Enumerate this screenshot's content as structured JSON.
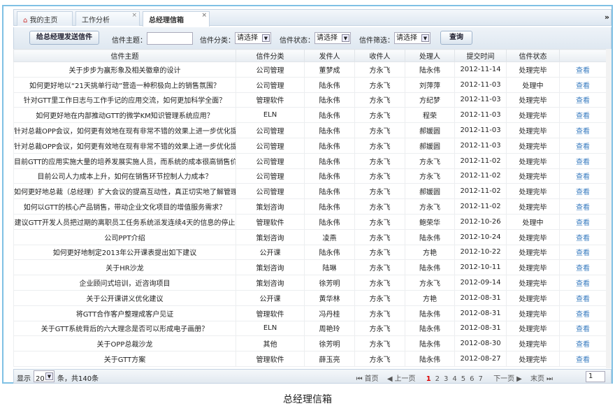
{
  "tabs": [
    {
      "label": "我的主页",
      "icon": "home-icon"
    },
    {
      "label": "工作分析",
      "closable": true
    },
    {
      "label": "总经理信箱",
      "closable": true,
      "active": true
    }
  ],
  "toolbar": {
    "send_button": "给总经理发送信件",
    "subject_label": "信件主题：",
    "subject_value": "",
    "category_label": "信件分类：",
    "category_value": "请选择",
    "status_label": "信件状态：",
    "status_value": "请选择",
    "filter_label": "信件筛选：",
    "filter_value": "请选择",
    "query_button": "查询"
  },
  "columns": [
    "信件主题",
    "信件分类",
    "发件人",
    "收件人",
    "处理人",
    "提交时间",
    "信件状态",
    ""
  ],
  "rows": [
    [
      "关于步步为赢形象及相关徽章的设计",
      "公司管理",
      "董梦成",
      "方永飞",
      "陆永伟",
      "2012-11-14",
      "处理完毕",
      "查看"
    ],
    [
      "如何更好地以“21天挑单行动”营造一种积极向上的销售氛围？",
      "公司管理",
      "陆永伟",
      "方永飞",
      "刘萍萍",
      "2012-11-03",
      "处理中",
      "查看"
    ],
    [
      "针对GTT里工作日志与工作手记的应用交流，如何更加科学全面？",
      "管理软件",
      "陆永伟",
      "方永飞",
      "方纪梦",
      "2012-11-03",
      "处理完毕",
      "查看"
    ],
    [
      "如何更好地在内部推动GTT的微学KM知识管理系统应用？",
      "ELN",
      "陆永伟",
      "方永飞",
      "程荣",
      "2012-11-03",
      "处理完毕",
      "查看"
    ],
    [
      "针对总裁OPP会议，如何更有效地在现有非常不错的效果上进一步优化提",
      "公司管理",
      "陆永伟",
      "方永飞",
      "郝媛圆",
      "2012-11-03",
      "处理完毕",
      "查看"
    ],
    [
      "针对总裁OPP会议，如何更有效地在现有非常不错的效果上进一步优化提",
      "公司管理",
      "陆永伟",
      "方永飞",
      "郝媛圆",
      "2012-11-03",
      "处理完毕",
      "查看"
    ],
    [
      "目前GTT的应用实施大量的培养发展实施人员，而系统的成本很高销售价",
      "公司管理",
      "陆永伟",
      "方永飞",
      "方永飞",
      "2012-11-02",
      "处理完毕",
      "查看"
    ],
    [
      "目前公司人力成本上升，如何在销售环节控制人力成本？",
      "公司管理",
      "陆永伟",
      "方永飞",
      "方永飞",
      "2012-11-02",
      "处理完毕",
      "查看"
    ],
    [
      "如何更好地总裁（总经理）扩大会议的提高互动性，真正切实地了解管理",
      "公司管理",
      "陆永伟",
      "方永飞",
      "郝媛圆",
      "2012-11-02",
      "处理完毕",
      "查看"
    ],
    [
      "如何以GTT的核心产品销售，带动企业文化项目的增值服务需求？",
      "策划咨询",
      "陆永伟",
      "方永飞",
      "方永飞",
      "2012-11-02",
      "处理完毕",
      "查看"
    ],
    [
      "建议GTT开发人员把过期的离职员工任务系统派发连续4天的信息的停止",
      "管理软件",
      "陆永伟",
      "方永飞",
      "鲍荣华",
      "2012-10-26",
      "处理中",
      "查看"
    ],
    [
      "公司PPT介绍",
      "策划咨询",
      "凌燕",
      "方永飞",
      "陆永伟",
      "2012-10-24",
      "处理完毕",
      "查看"
    ],
    [
      "如何更好地制定2013年公开课表提出如下建议",
      "公开课",
      "陆永伟",
      "方永飞",
      "方艳",
      "2012-10-22",
      "处理完毕",
      "查看"
    ],
    [
      "关于HR沙龙",
      "策划咨询",
      "陆琳",
      "方永飞",
      "陆永伟",
      "2012-10-11",
      "处理完毕",
      "查看"
    ],
    [
      "企业顾问式培训，近咨询项目",
      "策划咨询",
      "徐芳明",
      "方永飞",
      "方永飞",
      "2012-09-14",
      "处理完毕",
      "查看"
    ],
    [
      "关于公开课讲义优化建议",
      "公开课",
      "黄华林",
      "方永飞",
      "方艳",
      "2012-08-31",
      "处理完毕",
      "查看"
    ],
    [
      "将GTT合作客户整理成客户见证",
      "管理软件",
      "冯丹桂",
      "方永飞",
      "陆永伟",
      "2012-08-31",
      "处理完毕",
      "查看"
    ],
    [
      "关于GTT系统背后的六大理念是否可以形成电子画册？",
      "ELN",
      "周艳玲",
      "方永飞",
      "陆永伟",
      "2012-08-31",
      "处理完毕",
      "查看"
    ],
    [
      "关于OPP总裁沙龙",
      "其他",
      "徐芳明",
      "方永飞",
      "陆永伟",
      "2012-08-30",
      "处理完毕",
      "查看"
    ],
    [
      "关于GTT方案",
      "管理软件",
      "薛玉亮",
      "方永飞",
      "陆永伟",
      "2012-08-27",
      "处理完毕",
      "查看"
    ]
  ],
  "footer": {
    "show_label": "显示",
    "page_size": "20",
    "total": "条，共140条",
    "first": "首页",
    "prev": "上一页",
    "pages": [
      "1",
      "2",
      "3",
      "4",
      "5",
      "6",
      "7"
    ],
    "current_page": "1",
    "next": "下一页",
    "last": "末页",
    "page_input": "1"
  },
  "caption": "总经理信箱",
  "colors": {
    "frame": "#7fc0e4",
    "link": "#3a7cc0",
    "current_page": "#dd0000"
  }
}
